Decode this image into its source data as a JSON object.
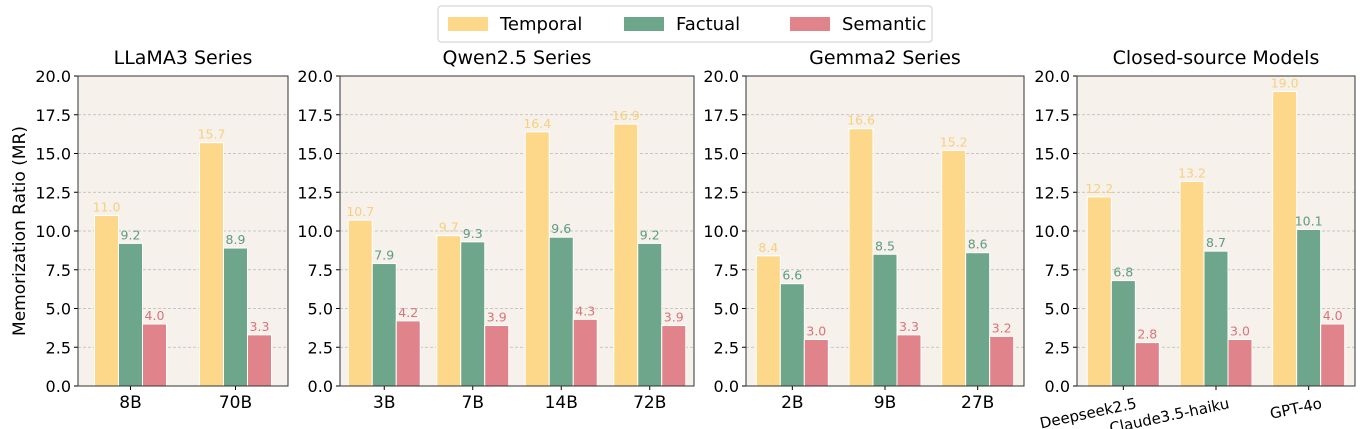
{
  "legend": {
    "position": "top-center",
    "items": [
      {
        "label": "Temporal",
        "color": "#FDD88A"
      },
      {
        "label": "Factual",
        "color": "#6DA68B"
      },
      {
        "label": "Semantic",
        "color": "#E0838B"
      }
    ]
  },
  "ylabel": "Memorization Ratio (MR)",
  "chart_data": [
    {
      "type": "bar",
      "title": "LLaMA3 Series",
      "categories": [
        "8B",
        "70B"
      ],
      "series": [
        {
          "name": "Temporal",
          "values": [
            11.0,
            15.7
          ]
        },
        {
          "name": "Factual",
          "values": [
            9.2,
            8.9
          ]
        },
        {
          "name": "Semantic",
          "values": [
            4.0,
            3.3
          ]
        }
      ],
      "ylim": [
        0,
        20
      ],
      "yticks": [
        "0.0",
        "2.5",
        "5.0",
        "7.5",
        "10.0",
        "12.5",
        "15.0",
        "17.5",
        "20.0"
      ],
      "ylabel": "Memorization Ratio (MR)",
      "grid": true
    },
    {
      "type": "bar",
      "title": "Qwen2.5 Series",
      "categories": [
        "3B",
        "7B",
        "14B",
        "72B"
      ],
      "series": [
        {
          "name": "Temporal",
          "values": [
            10.7,
            9.7,
            16.4,
            16.9
          ]
        },
        {
          "name": "Factual",
          "values": [
            7.9,
            9.3,
            9.6,
            9.2
          ]
        },
        {
          "name": "Semantic",
          "values": [
            4.2,
            3.9,
            4.3,
            3.9
          ]
        }
      ],
      "ylim": [
        0,
        20
      ],
      "yticks": [
        "0.0",
        "2.5",
        "5.0",
        "7.5",
        "10.0",
        "12.5",
        "15.0",
        "17.5",
        "20.0"
      ],
      "grid": true
    },
    {
      "type": "bar",
      "title": "Gemma2 Series",
      "categories": [
        "2B",
        "9B",
        "27B"
      ],
      "series": [
        {
          "name": "Temporal",
          "values": [
            8.4,
            16.6,
            15.2
          ]
        },
        {
          "name": "Factual",
          "values": [
            6.6,
            8.5,
            8.6
          ]
        },
        {
          "name": "Semantic",
          "values": [
            3.0,
            3.3,
            3.2
          ]
        }
      ],
      "ylim": [
        0,
        20
      ],
      "yticks": [
        "0.0",
        "2.5",
        "5.0",
        "7.5",
        "10.0",
        "12.5",
        "15.0",
        "17.5",
        "20.0"
      ],
      "grid": true
    },
    {
      "type": "bar",
      "title": "Closed-source Models",
      "categories": [
        "Deepseek2.5",
        "Claude3.5-haiku",
        "GPT-4o"
      ],
      "rotate_xticks": true,
      "series": [
        {
          "name": "Temporal",
          "values": [
            12.2,
            13.2,
            19.0
          ]
        },
        {
          "name": "Factual",
          "values": [
            6.8,
            8.7,
            10.1
          ]
        },
        {
          "name": "Semantic",
          "values": [
            2.8,
            3.0,
            4.0
          ]
        }
      ],
      "ylim": [
        0,
        20
      ],
      "yticks": [
        "0.0",
        "2.5",
        "5.0",
        "7.5",
        "10.0",
        "12.5",
        "15.0",
        "17.5",
        "20.0"
      ],
      "grid": true
    }
  ]
}
